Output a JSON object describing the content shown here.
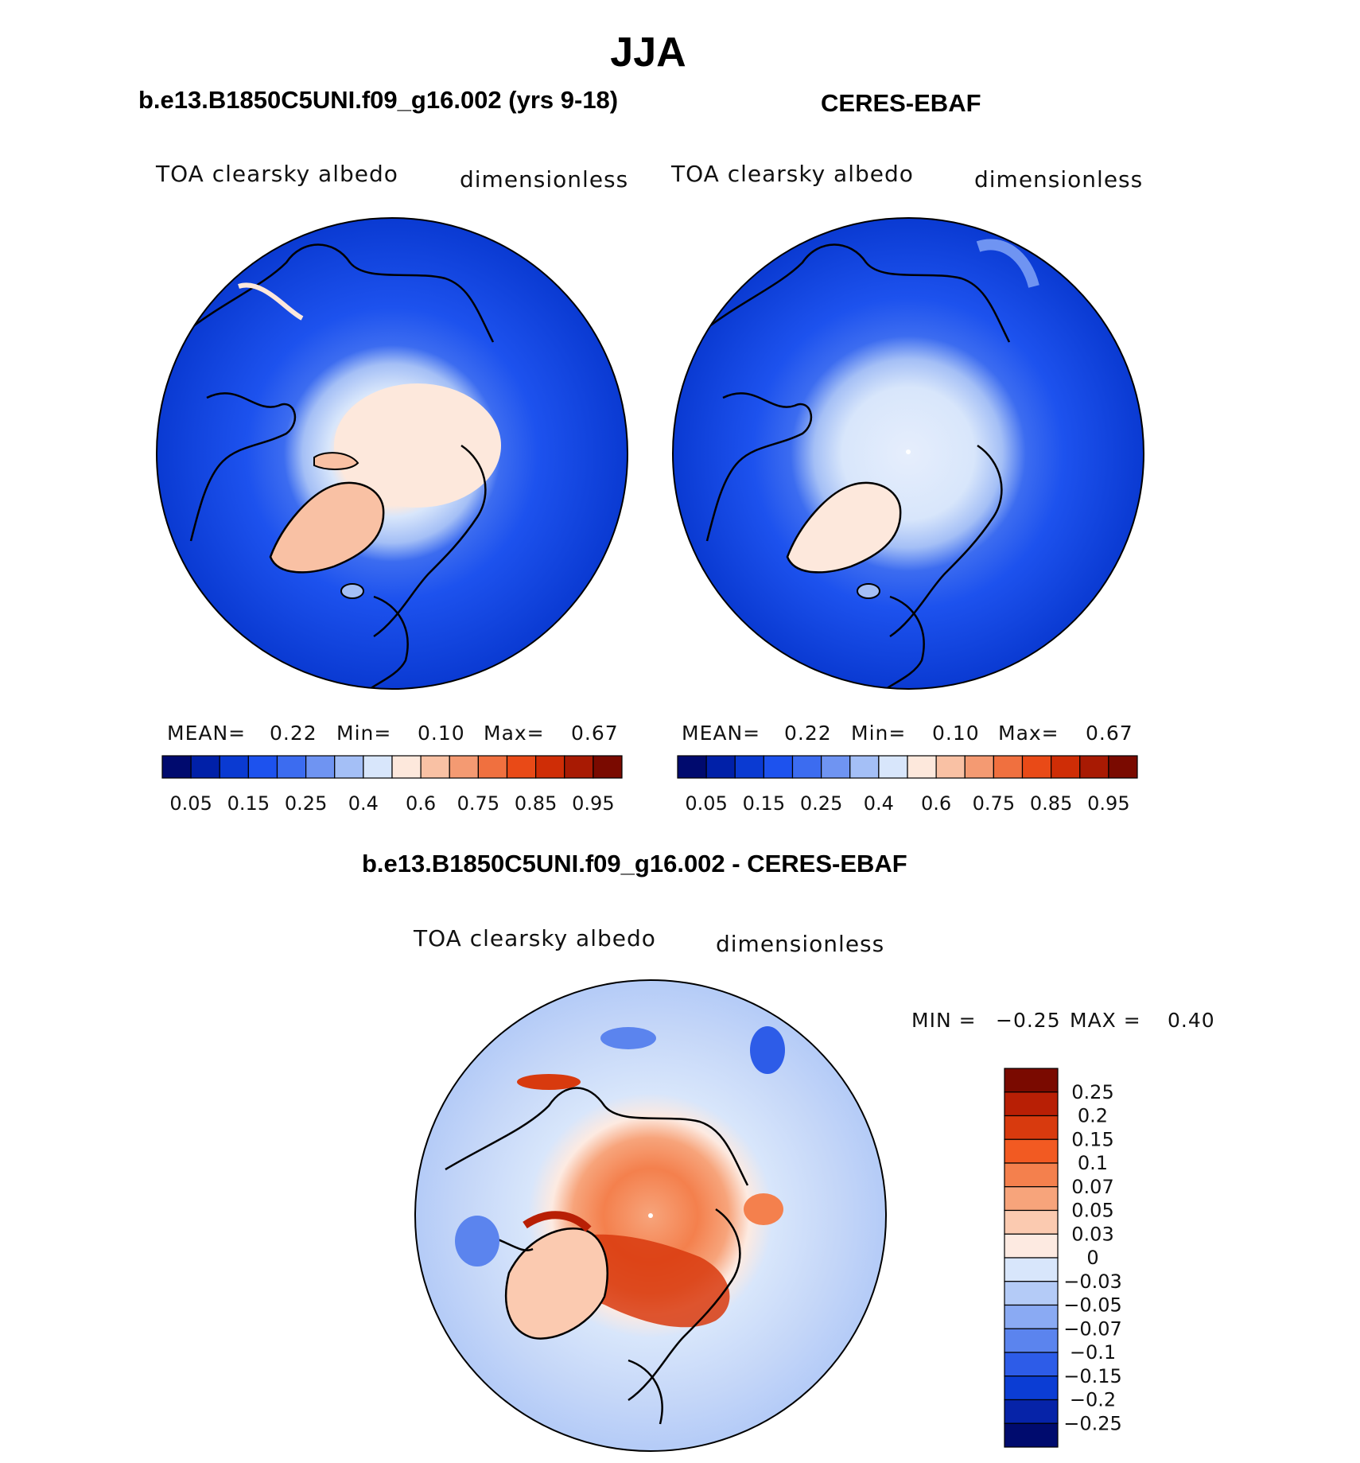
{
  "title": "JJA",
  "panels": [
    {
      "title": "b.e13.B1850C5UNI.f09_g16.002 (yrs 9-18)",
      "variable": "TOA clearsky albedo",
      "units": "dimensionless",
      "stats": {
        "mean_label": "MEAN=",
        "mean": "0.22",
        "min_label": "Min=",
        "min": "0.10",
        "max_label": "Max=",
        "max": "0.67"
      }
    },
    {
      "title": "CERES-EBAF",
      "variable": "TOA clearsky albedo",
      "units": "dimensionless",
      "stats": {
        "mean_label": "MEAN=",
        "mean": "0.22",
        "min_label": "Min=",
        "min": "0.10",
        "max_label": "Max=",
        "max": "0.67"
      }
    }
  ],
  "colorbar": {
    "colors": [
      "#000a6e",
      "#0020a8",
      "#0a3ad2",
      "#1d52ee",
      "#3c6cf0",
      "#6f94f2",
      "#a4bff6",
      "#d8e6fb",
      "#fde8dc",
      "#f9c1a4",
      "#f49a72",
      "#f0703f",
      "#e94a17",
      "#cf2d06",
      "#a81a03",
      "#7a0a00"
    ],
    "labels": [
      "0.05",
      "0.15",
      "0.25",
      "0.4",
      "0.6",
      "0.75",
      "0.85",
      "0.95"
    ]
  },
  "difference": {
    "title": "b.e13.B1850C5UNI.f09_g16.002 - CERES-EBAF",
    "variable": "TOA clearsky albedo",
    "units": "dimensionless",
    "min_label": "MIN =",
    "min": "−0.25",
    "max_label": "MAX =",
    "max": "0.40",
    "colorbar": {
      "colors_top_to_bottom": [
        "#7a0a00",
        "#b81f05",
        "#d83a0e",
        "#f25a22",
        "#f4804d",
        "#f7a47b",
        "#fbcab0",
        "#fdeae1",
        "#d8e6fb",
        "#b4cbf7",
        "#8aaaf3",
        "#5b84ee",
        "#2d5ce8",
        "#0b3dd4",
        "#0623a8",
        "#000b6e"
      ],
      "labels": [
        "0.25",
        "0.2",
        "0.15",
        "0.1",
        "0.07",
        "0.05",
        "0.03",
        "0",
        "−0.03",
        "−0.05",
        "−0.07",
        "−0.1",
        "−0.15",
        "−0.2",
        "−0.25"
      ]
    }
  }
}
